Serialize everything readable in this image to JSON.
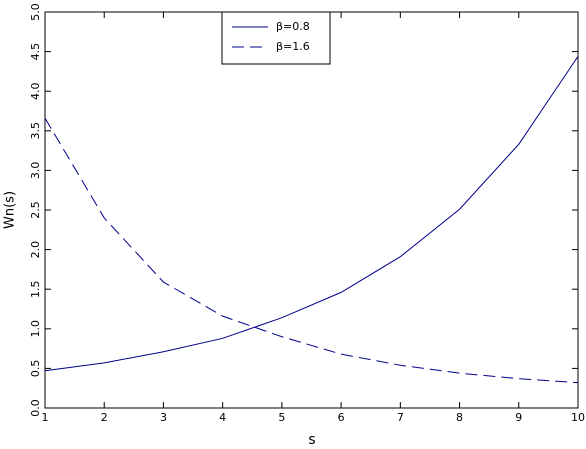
{
  "chart_data": {
    "type": "line",
    "x_label": "s",
    "y_label": "Wn(s)",
    "x": [
      1,
      2,
      3,
      4,
      5,
      6,
      7,
      8,
      9,
      10
    ],
    "series": [
      {
        "name": "β=0.8",
        "color": "#00008b",
        "line_style": "solid",
        "values": [
          0.47,
          0.57,
          0.71,
          0.88,
          1.14,
          1.46,
          1.91,
          2.51,
          3.33,
          4.44
        ]
      },
      {
        "name": "β=1.6",
        "color": "#00008b",
        "line_style": "dashed",
        "values": [
          3.66,
          2.4,
          1.59,
          1.16,
          0.9,
          0.68,
          0.54,
          0.44,
          0.37,
          0.32
        ]
      }
    ],
    "xlim": [
      1,
      10
    ],
    "ylim": [
      0,
      5
    ],
    "xticks": [
      1,
      2,
      3,
      4,
      5,
      6,
      7,
      8,
      9,
      10
    ],
    "yticks": [
      {
        "value": 0,
        "label": "0.0"
      },
      {
        "value": 0.5,
        "label": "0.5"
      },
      {
        "value": 1,
        "label": "1.0"
      },
      {
        "value": 1.5,
        "label": "1.5"
      },
      {
        "value": 2,
        "label": "2.0"
      },
      {
        "value": 2.5,
        "label": "2.5"
      },
      {
        "value": 3,
        "label": "3.0"
      },
      {
        "value": 3.5,
        "label": "3.5"
      },
      {
        "value": 4,
        "label": "4.0"
      },
      {
        "value": 4.5,
        "label": "4.5"
      },
      {
        "value": 5,
        "label": "5.0"
      }
    ],
    "grid": false,
    "legend": "upper center"
  }
}
